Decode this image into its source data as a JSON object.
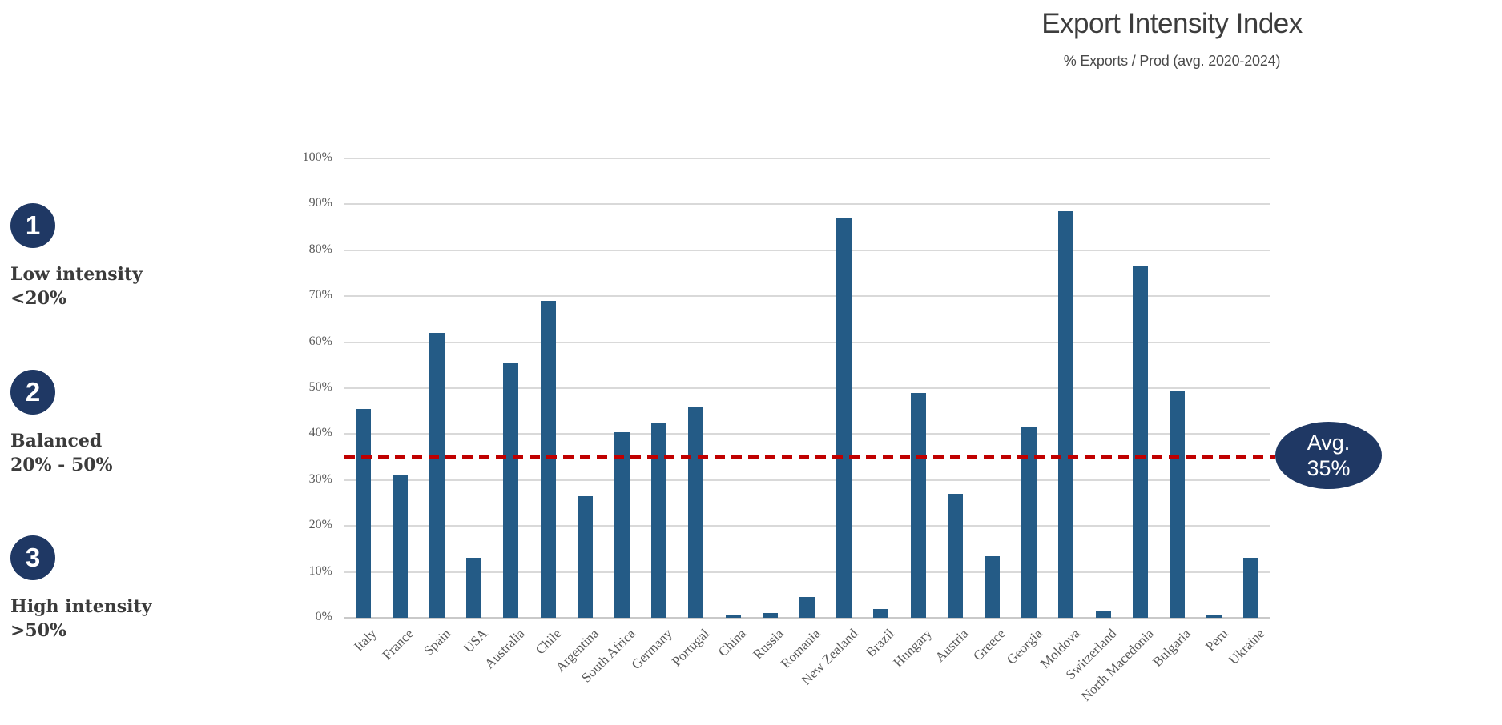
{
  "header": {
    "title": "Export Intensity Index",
    "subtitle": "% Exports / Prod (avg. 2020-2024)"
  },
  "legend": {
    "items": [
      {
        "number": "1",
        "label": "Low intensity",
        "range": "<20%"
      },
      {
        "number": "2",
        "label": "Balanced",
        "range": "20% - 50%"
      },
      {
        "number": "3",
        "label": "High intensity",
        "range": ">50%"
      }
    ]
  },
  "avg_badge": {
    "label": "Avg.",
    "value": "35%"
  },
  "colors": {
    "bar": "#245B86",
    "accent_navy": "#1F3864",
    "avg_line_red": "#C00000",
    "gridline": "#D9D9D9",
    "axis_text": "#595959",
    "title_text": "#3D3D3D"
  },
  "chart_data": {
    "type": "bar",
    "title": "Export Intensity Index",
    "subtitle": "% Exports / Prod (avg. 2020-2024)",
    "categories": [
      "Italy",
      "France",
      "Spain",
      "USA",
      "Australia",
      "Chile",
      "Argentina",
      "South Africa",
      "Germany",
      "Portugal",
      "China",
      "Russia",
      "Romania",
      "New Zealand",
      "Brazil",
      "Hungary",
      "Austria",
      "Greece",
      "Georgia",
      "Moldova",
      "Switzerland",
      "North Macedonia",
      "Bulgaria",
      "Peru",
      "Ukraine"
    ],
    "values": [
      45.5,
      31,
      62,
      13,
      55.5,
      69,
      26.5,
      40.5,
      42.5,
      46,
      0.5,
      1,
      4.5,
      87,
      2,
      49,
      27,
      13.5,
      41.5,
      88.5,
      1.5,
      76.5,
      49.5,
      0.5,
      13
    ],
    "unit": "%",
    "ylim": [
      0,
      100
    ],
    "ytick_step": 10,
    "yticks": [
      "0%",
      "10%",
      "20%",
      "30%",
      "40%",
      "50%",
      "60%",
      "70%",
      "80%",
      "90%",
      "100%"
    ],
    "grid": true,
    "legend_position": "none",
    "avg_line": {
      "value": 35,
      "label": "Avg. 35%"
    }
  }
}
